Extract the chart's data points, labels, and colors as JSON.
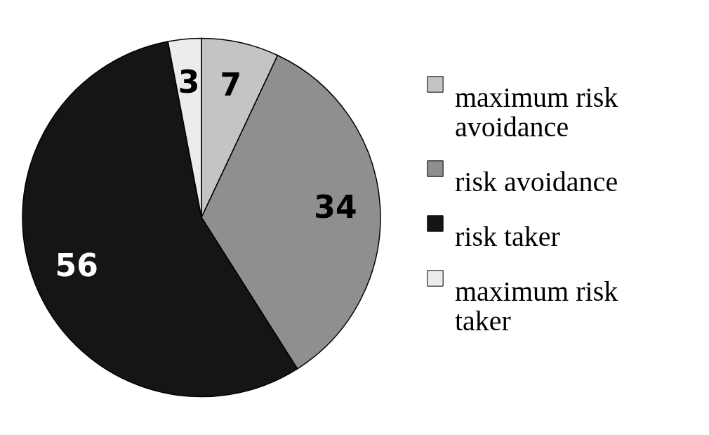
{
  "chart_data": {
    "type": "pie",
    "categories": [
      "maximum risk avoidance",
      "risk avoidance",
      "risk taker",
      "maximum risk taker"
    ],
    "values": [
      7,
      34,
      56,
      3
    ],
    "colors": [
      "#c4c4c4",
      "#8f8f8f",
      "#151515",
      "#ececec"
    ],
    "data_labels": true,
    "legend": "right"
  }
}
